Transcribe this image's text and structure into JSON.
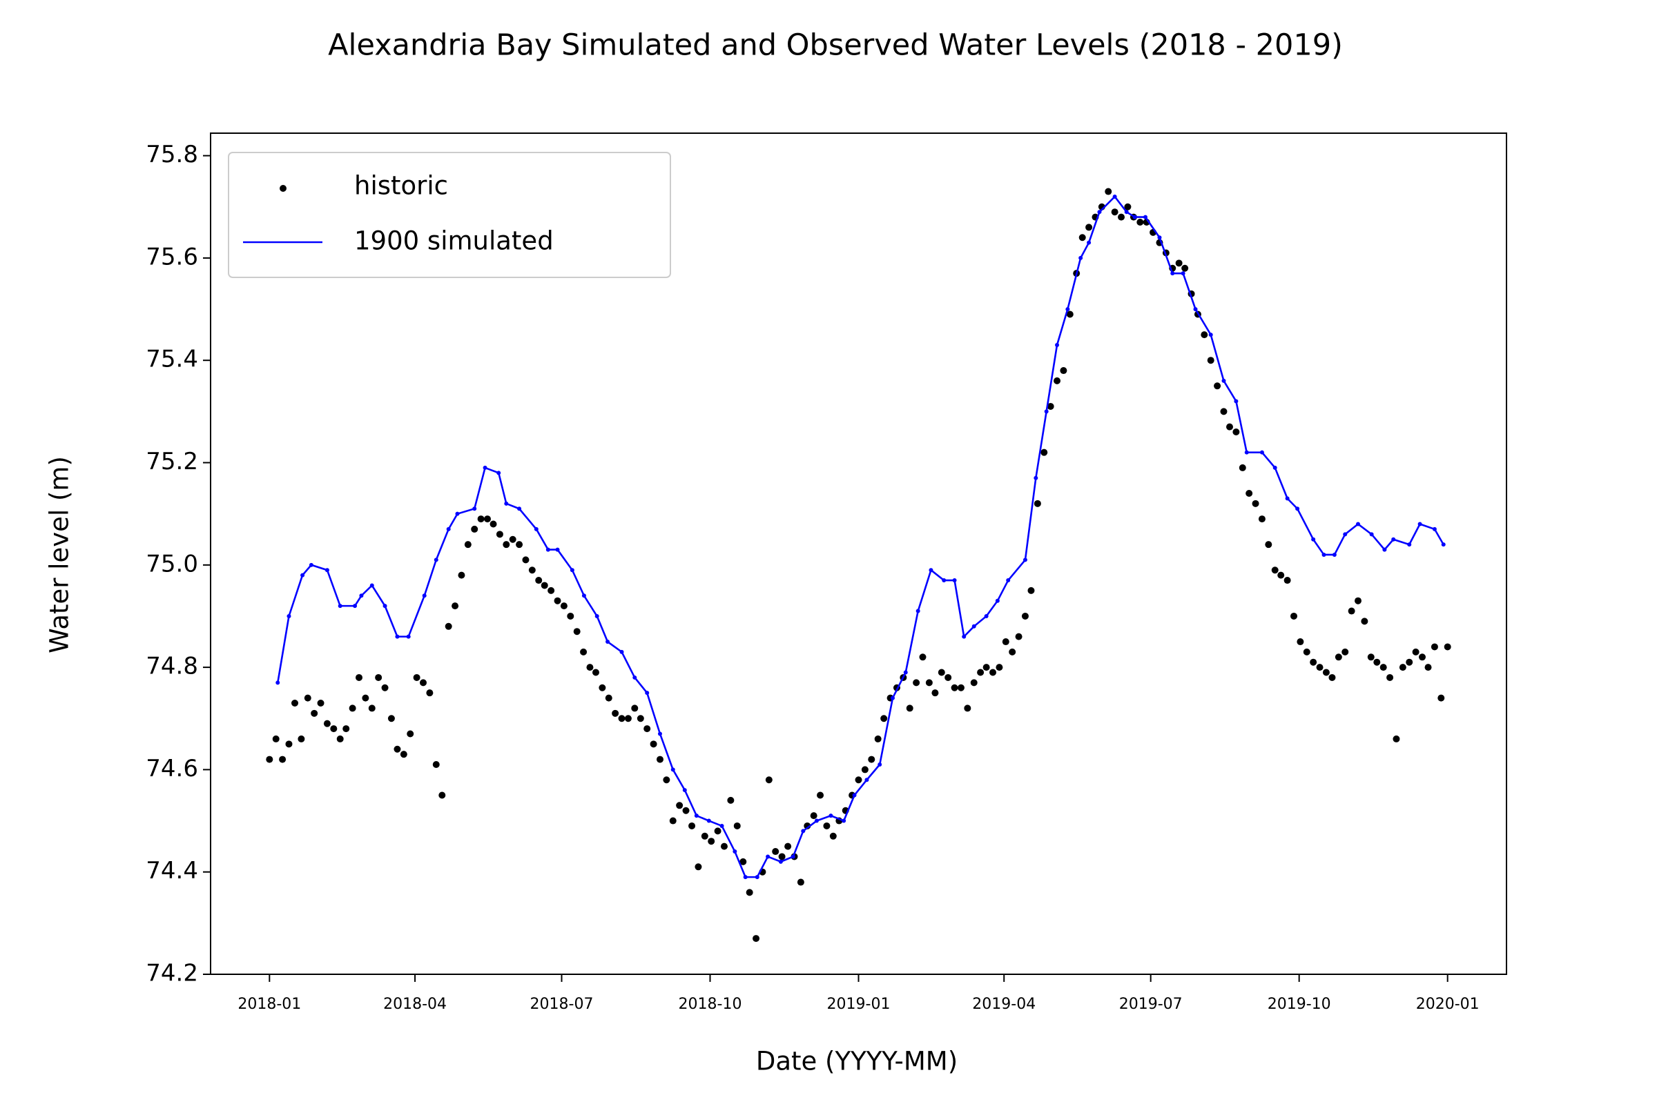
{
  "chart_data": {
    "type": "scatter-line",
    "title": "Alexandria Bay Simulated and Observed Water Levels (2018 - 2019)",
    "x_label": "Date (YYYY-MM)",
    "y_label": "Water level (m)",
    "xlim": [
      2017.9,
      2020.1
    ],
    "ylim": [
      74.2,
      75.844
    ],
    "xticks": [
      {
        "value": 2018.0,
        "label": "2018-01"
      },
      {
        "value": 2018.247,
        "label": "2018-04"
      },
      {
        "value": 2018.496,
        "label": "2018-07"
      },
      {
        "value": 2018.748,
        "label": "2018-10"
      },
      {
        "value": 2019.0,
        "label": "2019-01"
      },
      {
        "value": 2019.247,
        "label": "2019-04"
      },
      {
        "value": 2019.496,
        "label": "2019-07"
      },
      {
        "value": 2019.748,
        "label": "2019-10"
      },
      {
        "value": 2020.0,
        "label": "2020-01"
      }
    ],
    "yticks": [
      74.2,
      74.4,
      74.6,
      74.8,
      {
        "value": 75.0,
        "label": "75.0"
      },
      75.2,
      75.4,
      75.6,
      75.8
    ],
    "legend": "upper left",
    "series": [
      {
        "name": "historic",
        "kind": "scatter",
        "color": "#000000",
        "x": [
          2018.0,
          2018.011,
          2018.022,
          2018.033,
          2018.043,
          2018.054,
          2018.065,
          2018.076,
          2018.087,
          2018.098,
          2018.109,
          2018.12,
          2018.13,
          2018.141,
          2018.152,
          2018.163,
          2018.174,
          2018.185,
          2018.196,
          2018.207,
          2018.217,
          2018.228,
          2018.239,
          2018.25,
          2018.261,
          2018.272,
          2018.283,
          2018.293,
          2018.304,
          2018.315,
          2018.326,
          2018.337,
          2018.348,
          2018.359,
          2018.37,
          2018.38,
          2018.391,
          2018.402,
          2018.413,
          2018.424,
          2018.435,
          2018.446,
          2018.457,
          2018.467,
          2018.478,
          2018.489,
          2018.5,
          2018.511,
          2018.522,
          2018.533,
          2018.544,
          2018.554,
          2018.565,
          2018.576,
          2018.587,
          2018.598,
          2018.609,
          2018.62,
          2018.63,
          2018.641,
          2018.652,
          2018.663,
          2018.674,
          2018.685,
          2018.696,
          2018.707,
          2018.717,
          2018.728,
          2018.739,
          2018.75,
          2018.761,
          2018.772,
          2018.783,
          2018.794,
          2018.804,
          2018.815,
          2018.826,
          2018.837,
          2018.848,
          2018.859,
          2018.87,
          2018.88,
          2018.891,
          2018.902,
          2018.913,
          2018.924,
          2018.935,
          2018.946,
          2018.957,
          2018.967,
          2018.978,
          2018.989,
          2019.0,
          2019.011,
          2019.022,
          2019.033,
          2019.043,
          2019.054,
          2019.065,
          2019.076,
          2019.087,
          2019.098,
          2019.109,
          2019.12,
          2019.13,
          2019.141,
          2019.152,
          2019.163,
          2019.174,
          2019.185,
          2019.196,
          2019.207,
          2019.217,
          2019.228,
          2019.239,
          2019.25,
          2019.261,
          2019.272,
          2019.283,
          2019.293,
          2019.304,
          2019.315,
          2019.326,
          2019.337,
          2019.348,
          2019.359,
          2019.37,
          2019.38,
          2019.391,
          2019.402,
          2019.413,
          2019.424,
          2019.435,
          2019.446,
          2019.457,
          2019.467,
          2019.478,
          2019.489,
          2019.5,
          2019.511,
          2019.522,
          2019.533,
          2019.544,
          2019.554,
          2019.565,
          2019.576,
          2019.587,
          2019.598,
          2019.609,
          2019.62,
          2019.63,
          2019.641,
          2019.652,
          2019.663,
          2019.674,
          2019.685,
          2019.696,
          2019.707,
          2019.717,
          2019.728,
          2019.739,
          2019.75,
          2019.761,
          2019.772,
          2019.783,
          2019.794,
          2019.804,
          2019.815,
          2019.826,
          2019.837,
          2019.848,
          2019.859,
          2019.87,
          2019.88,
          2019.891,
          2019.902,
          2019.913,
          2019.924,
          2019.935,
          2019.946,
          2019.957,
          2019.967,
          2019.978,
          2019.989,
          2020.0
        ],
        "values": [
          74.62,
          74.66,
          74.62,
          74.65,
          74.73,
          74.66,
          74.74,
          74.71,
          74.73,
          74.69,
          74.68,
          74.66,
          74.68,
          74.72,
          74.78,
          74.74,
          74.72,
          74.78,
          74.76,
          74.7,
          74.64,
          74.63,
          74.67,
          74.78,
          74.77,
          74.75,
          74.61,
          74.55,
          74.88,
          74.92,
          74.98,
          75.04,
          75.07,
          75.09,
          75.09,
          75.08,
          75.06,
          75.04,
          75.05,
          75.04,
          75.01,
          74.99,
          74.97,
          74.96,
          74.95,
          74.93,
          74.92,
          74.9,
          74.87,
          74.83,
          74.8,
          74.79,
          74.76,
          74.74,
          74.71,
          74.7,
          74.7,
          74.72,
          74.7,
          74.68,
          74.65,
          74.62,
          74.58,
          74.5,
          74.53,
          74.52,
          74.49,
          74.41,
          74.47,
          74.46,
          74.48,
          74.45,
          74.54,
          74.49,
          74.42,
          74.36,
          74.27,
          74.4,
          74.58,
          74.44,
          74.43,
          74.45,
          74.43,
          74.38,
          74.49,
          74.51,
          74.55,
          74.49,
          74.47,
          74.5,
          74.52,
          74.55,
          74.58,
          74.6,
          74.62,
          74.66,
          74.7,
          74.74,
          74.76,
          74.78,
          74.72,
          74.77,
          74.82,
          74.77,
          74.75,
          74.79,
          74.78,
          74.76,
          74.76,
          74.72,
          74.77,
          74.79,
          74.8,
          74.79,
          74.8,
          74.85,
          74.83,
          74.86,
          74.9,
          74.95,
          75.12,
          75.22,
          75.31,
          75.36,
          75.38,
          75.49,
          75.57,
          75.64,
          75.66,
          75.68,
          75.7,
          75.73,
          75.69,
          75.68,
          75.7,
          75.68,
          75.67,
          75.67,
          75.65,
          75.63,
          75.61,
          75.58,
          75.59,
          75.58,
          75.53,
          75.49,
          75.45,
          75.4,
          75.35,
          75.3,
          75.27,
          75.26,
          75.19,
          75.14,
          75.12,
          75.09,
          75.04,
          74.99,
          74.98,
          74.97,
          74.9,
          74.85,
          74.83,
          74.81,
          74.8,
          74.79,
          74.78,
          74.82,
          74.83,
          74.91,
          74.93,
          74.89,
          74.82,
          74.81,
          74.8,
          74.78,
          74.66,
          74.8,
          74.81,
          74.83,
          74.82,
          74.8,
          74.84,
          74.74,
          74.84
        ]
      },
      {
        "name": "1900 simulated",
        "kind": "line",
        "color": "#0000ff",
        "x": [
          2018.014,
          2018.033,
          2018.056,
          2018.071,
          2018.098,
          2018.12,
          2018.145,
          2018.156,
          2018.174,
          2018.196,
          2018.217,
          2018.236,
          2018.263,
          2018.283,
          2018.304,
          2018.319,
          2018.348,
          2018.366,
          2018.389,
          2018.402,
          2018.424,
          2018.453,
          2018.473,
          2018.489,
          2018.514,
          2018.534,
          2018.556,
          2018.574,
          2018.598,
          2018.62,
          2018.641,
          2018.663,
          2018.685,
          2018.705,
          2018.725,
          2018.746,
          2018.768,
          2018.79,
          2018.808,
          2018.828,
          2018.846,
          2018.868,
          2018.889,
          2018.906,
          2018.929,
          2018.953,
          2018.975,
          2018.993,
          2019.014,
          2019.036,
          2019.058,
          2019.08,
          2019.101,
          2019.123,
          2019.145,
          2019.163,
          2019.179,
          2019.196,
          2019.217,
          2019.236,
          2019.254,
          2019.283,
          2019.301,
          2019.319,
          2019.337,
          2019.355,
          2019.377,
          2019.391,
          2019.409,
          2019.435,
          2019.455,
          2019.469,
          2019.487,
          2019.511,
          2019.533,
          2019.551,
          2019.572,
          2019.598,
          2019.62,
          2019.641,
          2019.659,
          2019.685,
          2019.707,
          2019.728,
          2019.745,
          2019.772,
          2019.79,
          2019.808,
          2019.826,
          2019.848,
          2019.871,
          2019.893,
          2019.908,
          2019.935,
          2019.953,
          2019.978,
          2019.993
        ],
        "values": [
          74.77,
          74.9,
          74.98,
          75.0,
          74.99,
          74.92,
          74.92,
          74.94,
          74.96,
          74.92,
          74.86,
          74.86,
          74.94,
          75.01,
          75.07,
          75.1,
          75.11,
          75.19,
          75.18,
          75.12,
          75.11,
          75.07,
          75.03,
          75.03,
          74.99,
          74.94,
          74.9,
          74.85,
          74.83,
          74.78,
          74.75,
          74.67,
          74.6,
          74.56,
          74.51,
          74.5,
          74.49,
          74.44,
          74.39,
          74.39,
          74.43,
          74.42,
          74.43,
          74.48,
          74.5,
          74.51,
          74.5,
          74.55,
          74.58,
          74.61,
          74.74,
          74.79,
          74.91,
          74.99,
          74.97,
          74.97,
          74.86,
          74.88,
          74.9,
          74.93,
          74.97,
          75.01,
          75.17,
          75.3,
          75.43,
          75.5,
          75.6,
          75.63,
          75.69,
          75.72,
          75.69,
          75.68,
          75.68,
          75.64,
          75.57,
          75.57,
          75.5,
          75.45,
          75.36,
          75.32,
          75.22,
          75.22,
          75.19,
          75.13,
          75.11,
          75.05,
          75.02,
          75.02,
          75.06,
          75.08,
          75.06,
          75.03,
          75.05,
          75.04,
          75.08,
          75.07,
          75.04
        ]
      }
    ]
  }
}
